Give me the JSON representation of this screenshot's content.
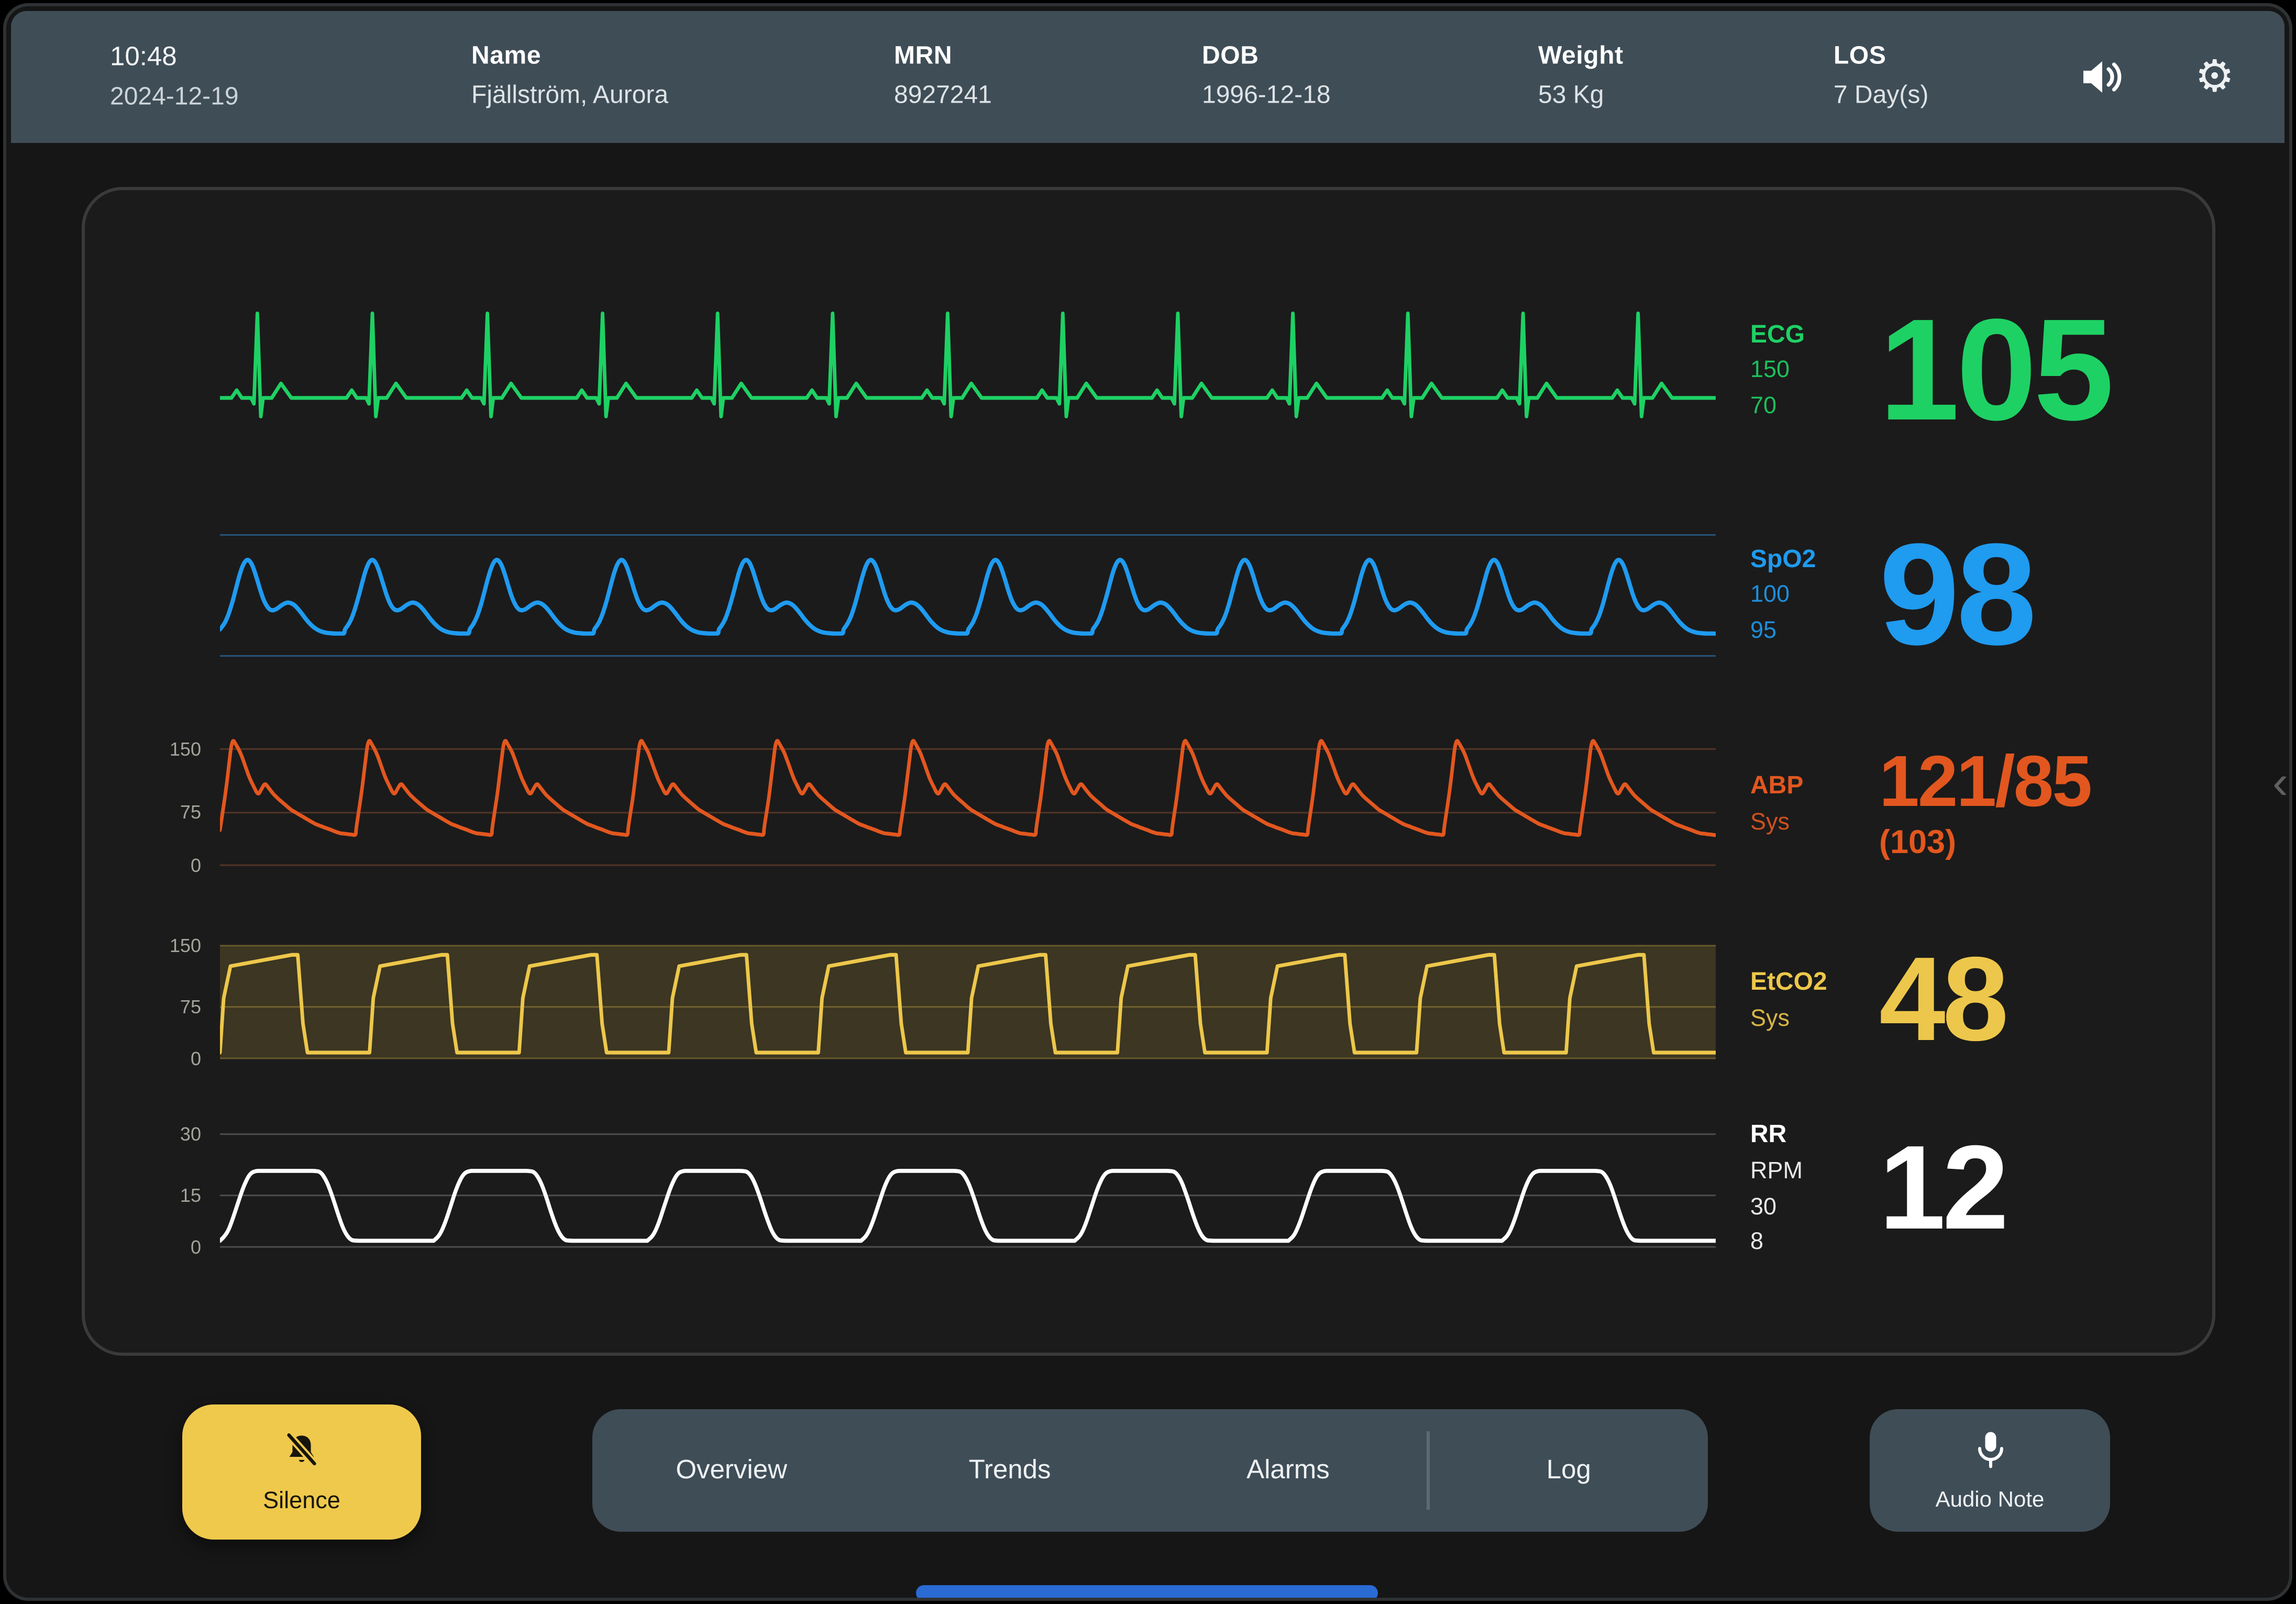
{
  "header": {
    "time": "10:48",
    "date": "2024-12-19",
    "fields": [
      {
        "label": "Name",
        "value": "Fjällström, Aurora"
      },
      {
        "label": "MRN",
        "value": "8927241"
      },
      {
        "label": "DOB",
        "value": "1996-12-18"
      },
      {
        "label": "Weight",
        "value": "53 Kg"
      },
      {
        "label": "LOS",
        "value": "7 Day(s)"
      }
    ]
  },
  "channels": [
    {
      "id": "ecg",
      "label": "ECG",
      "sublines": [
        "150",
        "70"
      ],
      "value": "105",
      "color": "#1ed164",
      "wave": "ecg",
      "cycles": 13,
      "ticks": []
    },
    {
      "id": "spo2",
      "label": "SpO2",
      "sublines": [
        "100",
        "95"
      ],
      "value": "98",
      "color": "#1f9bf0",
      "wave": "pleth",
      "cycles": 12,
      "ticks": []
    },
    {
      "id": "abp",
      "label": "ABP",
      "sublines": [
        "Sys"
      ],
      "value": "121/85",
      "value_sub": "(103)",
      "color": "#e2571f",
      "wave": "art",
      "cycles": 11,
      "ticks": [
        "150",
        "75",
        "0"
      ]
    },
    {
      "id": "etco2",
      "label": "EtCO2",
      "sublines": [
        "Sys"
      ],
      "value": "48",
      "color": "#edc74b",
      "wave": "capno",
      "cycles": 10,
      "ticks": [
        "150",
        "75",
        "0"
      ]
    },
    {
      "id": "rr",
      "label": "RR",
      "sublines": [
        "RPM",
        "30",
        "8"
      ],
      "value": "12",
      "color": "#ffffff",
      "wave": "resp",
      "cycles": 7,
      "ticks": [
        "30",
        "15",
        "0"
      ]
    }
  ],
  "footer": {
    "silence": "Silence",
    "tabs": [
      "Overview",
      "Trends",
      "Alarms",
      "Log"
    ],
    "audio_note": "Audio Note"
  },
  "handle_glyph": "‹",
  "colors": {
    "header_bg": "#3f4d57",
    "panel_bg": "#1b1b1b",
    "silence_yellow": "#efc94c",
    "ecg_green": "#1ed164",
    "spo2_blue": "#1f9bf0",
    "abp_orange": "#e2571f",
    "etco2_yellow": "#edc74b",
    "rr_white": "#ffffff",
    "home_indicator": "#2a6bd4"
  }
}
